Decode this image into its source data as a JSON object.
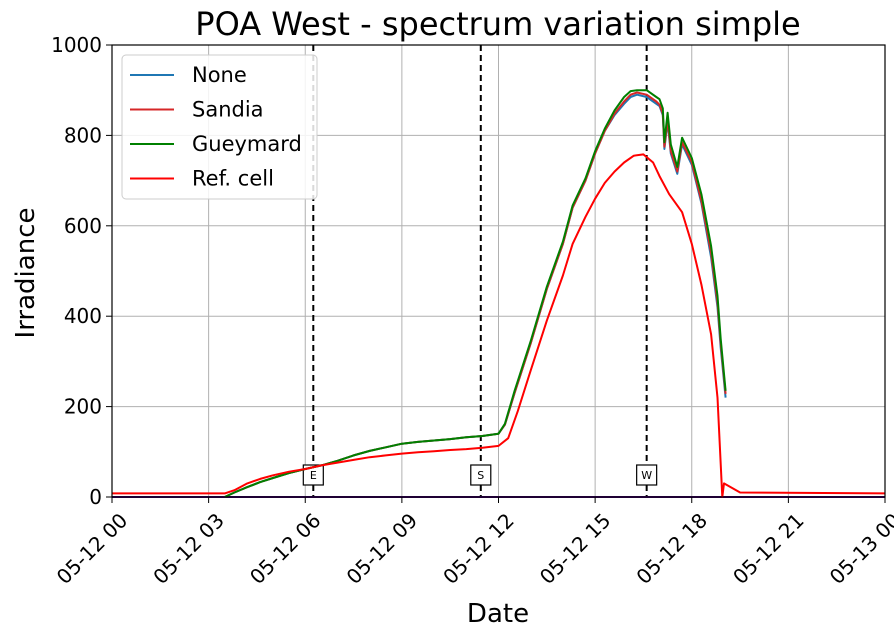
{
  "chart_data": {
    "type": "line",
    "title": "POA West - spectrum variation simple",
    "xlabel": "Date",
    "ylabel": "Irradiance",
    "xlim": [
      0,
      24
    ],
    "ylim": [
      0,
      1000
    ],
    "grid": true,
    "legend_position": "top-left",
    "x_ticks": [
      {
        "value": 0,
        "label": "05-12 00"
      },
      {
        "value": 3,
        "label": "05-12 03"
      },
      {
        "value": 6,
        "label": "05-12 06"
      },
      {
        "value": 9,
        "label": "05-12 09"
      },
      {
        "value": 12,
        "label": "05-12 12"
      },
      {
        "value": 15,
        "label": "05-12 15"
      },
      {
        "value": 18,
        "label": "05-12 18"
      },
      {
        "value": 21,
        "label": "05-12 21"
      },
      {
        "value": 24,
        "label": "05-13 00"
      }
    ],
    "y_ticks": [
      {
        "value": 0,
        "label": "0"
      },
      {
        "value": 200,
        "label": "200"
      },
      {
        "value": 400,
        "label": "400"
      },
      {
        "value": 600,
        "label": "600"
      },
      {
        "value": 800,
        "label": "800"
      },
      {
        "value": 1000,
        "label": "1000"
      }
    ],
    "vlines": [
      {
        "x": 6.25,
        "label": "E"
      },
      {
        "x": 11.45,
        "label": "S"
      },
      {
        "x": 16.6,
        "label": "W"
      }
    ],
    "baseline": {
      "y": 0,
      "color": "#4b0082"
    },
    "series": [
      {
        "name": "None",
        "color": "#1f77b4",
        "points": [
          [
            3.5,
            0
          ],
          [
            3.8,
            10
          ],
          [
            4.2,
            22
          ],
          [
            4.6,
            33
          ],
          [
            5.0,
            42
          ],
          [
            5.5,
            53
          ],
          [
            6.0,
            62
          ],
          [
            6.5,
            70
          ],
          [
            7.0,
            80
          ],
          [
            7.5,
            92
          ],
          [
            8.0,
            102
          ],
          [
            8.5,
            110
          ],
          [
            9.0,
            118
          ],
          [
            9.5,
            122
          ],
          [
            10.0,
            125
          ],
          [
            10.5,
            128
          ],
          [
            11.0,
            132
          ],
          [
            11.5,
            135
          ],
          [
            11.8,
            138
          ],
          [
            12.0,
            140
          ],
          [
            12.2,
            160
          ],
          [
            12.5,
            230
          ],
          [
            13.0,
            340
          ],
          [
            13.5,
            460
          ],
          [
            14.0,
            560
          ],
          [
            14.3,
            640
          ],
          [
            14.7,
            700
          ],
          [
            15.0,
            760
          ],
          [
            15.3,
            810
          ],
          [
            15.6,
            845
          ],
          [
            15.9,
            870
          ],
          [
            16.1,
            885
          ],
          [
            16.3,
            890
          ],
          [
            16.6,
            885
          ],
          [
            16.9,
            870
          ],
          [
            17.0,
            865
          ],
          [
            17.1,
            845
          ],
          [
            17.15,
            770
          ],
          [
            17.25,
            830
          ],
          [
            17.35,
            760
          ],
          [
            17.55,
            715
          ],
          [
            17.7,
            780
          ],
          [
            18.0,
            735
          ],
          [
            18.3,
            650
          ],
          [
            18.6,
            530
          ],
          [
            18.8,
            420
          ],
          [
            18.9,
            330
          ],
          [
            19.05,
            220
          ]
        ]
      },
      {
        "name": "Sandia",
        "color": "#d62728",
        "points": [
          [
            3.5,
            0
          ],
          [
            3.8,
            10
          ],
          [
            4.2,
            22
          ],
          [
            4.6,
            33
          ],
          [
            5.0,
            42
          ],
          [
            5.5,
            53
          ],
          [
            6.0,
            62
          ],
          [
            6.5,
            70
          ],
          [
            7.0,
            80
          ],
          [
            7.5,
            92
          ],
          [
            8.0,
            102
          ],
          [
            8.5,
            110
          ],
          [
            9.0,
            118
          ],
          [
            9.5,
            122
          ],
          [
            10.0,
            125
          ],
          [
            10.5,
            128
          ],
          [
            11.0,
            132
          ],
          [
            11.5,
            135
          ],
          [
            11.8,
            138
          ],
          [
            12.0,
            140
          ],
          [
            12.2,
            160
          ],
          [
            12.5,
            230
          ],
          [
            13.0,
            340
          ],
          [
            13.5,
            460
          ],
          [
            14.0,
            560
          ],
          [
            14.3,
            640
          ],
          [
            14.7,
            700
          ],
          [
            15.0,
            760
          ],
          [
            15.3,
            810
          ],
          [
            15.6,
            848
          ],
          [
            15.9,
            875
          ],
          [
            16.1,
            890
          ],
          [
            16.3,
            895
          ],
          [
            16.6,
            890
          ],
          [
            16.9,
            875
          ],
          [
            17.0,
            868
          ],
          [
            17.1,
            848
          ],
          [
            17.15,
            775
          ],
          [
            17.25,
            835
          ],
          [
            17.35,
            765
          ],
          [
            17.55,
            720
          ],
          [
            17.7,
            785
          ],
          [
            18.0,
            740
          ],
          [
            18.3,
            655
          ],
          [
            18.6,
            540
          ],
          [
            18.8,
            430
          ],
          [
            18.9,
            340
          ],
          [
            19.05,
            228
          ]
        ]
      },
      {
        "name": "Gueymard",
        "color": "#008000",
        "points": [
          [
            3.5,
            0
          ],
          [
            3.8,
            10
          ],
          [
            4.2,
            22
          ],
          [
            4.6,
            33
          ],
          [
            5.0,
            42
          ],
          [
            5.5,
            53
          ],
          [
            6.0,
            62
          ],
          [
            6.5,
            70
          ],
          [
            7.0,
            80
          ],
          [
            7.5,
            92
          ],
          [
            8.0,
            102
          ],
          [
            8.5,
            110
          ],
          [
            9.0,
            118
          ],
          [
            9.5,
            122
          ],
          [
            10.0,
            125
          ],
          [
            10.5,
            128
          ],
          [
            11.0,
            132
          ],
          [
            11.5,
            135
          ],
          [
            11.8,
            138
          ],
          [
            12.0,
            140
          ],
          [
            12.2,
            162
          ],
          [
            12.5,
            235
          ],
          [
            13.0,
            345
          ],
          [
            13.5,
            465
          ],
          [
            14.0,
            565
          ],
          [
            14.3,
            645
          ],
          [
            14.7,
            705
          ],
          [
            15.0,
            765
          ],
          [
            15.3,
            815
          ],
          [
            15.6,
            855
          ],
          [
            15.9,
            885
          ],
          [
            16.1,
            898
          ],
          [
            16.3,
            900
          ],
          [
            16.6,
            900
          ],
          [
            16.9,
            885
          ],
          [
            17.0,
            880
          ],
          [
            17.1,
            860
          ],
          [
            17.15,
            785
          ],
          [
            17.25,
            850
          ],
          [
            17.35,
            780
          ],
          [
            17.55,
            730
          ],
          [
            17.7,
            795
          ],
          [
            18.0,
            750
          ],
          [
            18.3,
            670
          ],
          [
            18.6,
            555
          ],
          [
            18.8,
            445
          ],
          [
            18.9,
            350
          ],
          [
            19.05,
            235
          ]
        ]
      },
      {
        "name": "Ref. cell",
        "color": "#ff0000",
        "points": [
          [
            0,
            8
          ],
          [
            3.0,
            8
          ],
          [
            3.5,
            8
          ],
          [
            3.8,
            15
          ],
          [
            4.2,
            30
          ],
          [
            4.6,
            40
          ],
          [
            5.0,
            48
          ],
          [
            5.5,
            56
          ],
          [
            6.0,
            62
          ],
          [
            6.5,
            70
          ],
          [
            7.0,
            76
          ],
          [
            7.5,
            82
          ],
          [
            8.0,
            88
          ],
          [
            8.5,
            92
          ],
          [
            9.0,
            96
          ],
          [
            9.5,
            99
          ],
          [
            10.0,
            101
          ],
          [
            10.5,
            104
          ],
          [
            11.0,
            106
          ],
          [
            11.5,
            109
          ],
          [
            12.0,
            113
          ],
          [
            12.3,
            130
          ],
          [
            12.6,
            190
          ],
          [
            13.0,
            280
          ],
          [
            13.5,
            390
          ],
          [
            14.0,
            490
          ],
          [
            14.3,
            560
          ],
          [
            14.7,
            620
          ],
          [
            15.0,
            660
          ],
          [
            15.3,
            695
          ],
          [
            15.6,
            720
          ],
          [
            15.9,
            740
          ],
          [
            16.2,
            755
          ],
          [
            16.5,
            758
          ],
          [
            16.8,
            740
          ],
          [
            17.0,
            710
          ],
          [
            17.3,
            670
          ],
          [
            17.7,
            630
          ],
          [
            18.0,
            560
          ],
          [
            18.3,
            470
          ],
          [
            18.6,
            360
          ],
          [
            18.8,
            220
          ],
          [
            18.95,
            0
          ],
          [
            19.0,
            30
          ],
          [
            19.5,
            10
          ],
          [
            24,
            8
          ]
        ]
      }
    ]
  }
}
